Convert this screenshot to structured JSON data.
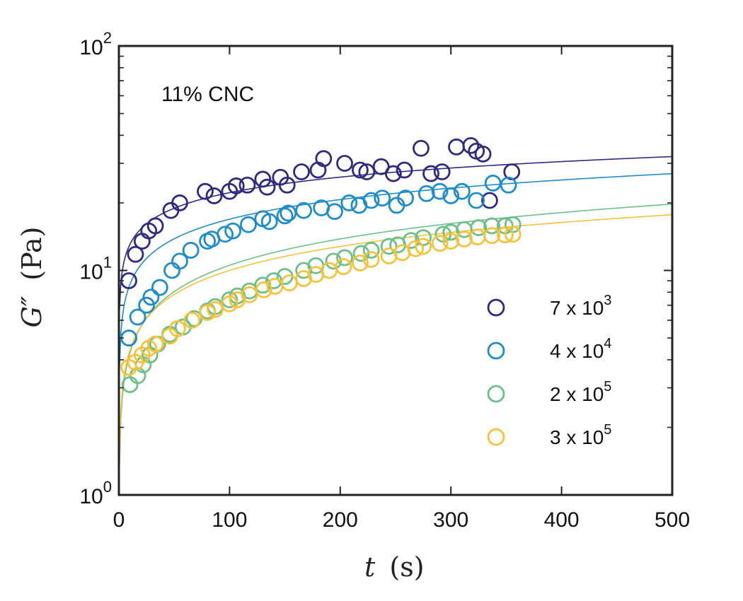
{
  "chart_data": {
    "type": "scatter",
    "annotation": "11% CNC",
    "x_axis": {
      "variable": "t",
      "unit": "(s)",
      "lim": [
        0,
        500
      ],
      "ticks": [
        0,
        100,
        200,
        300,
        400,
        500
      ],
      "tick_labels": [
        "0",
        "100",
        "200",
        "300",
        "400",
        "500"
      ]
    },
    "y_axis": {
      "scale": "log",
      "variable": "G″",
      "unit": "(Pa)",
      "lim": [
        1,
        100
      ],
      "ticks": [
        1,
        10,
        100
      ],
      "tick_labels": [
        {
          "base": "10",
          "exp": "0"
        },
        {
          "base": "10",
          "exp": "1"
        },
        {
          "base": "10",
          "exp": "2"
        }
      ]
    },
    "legend_position": "right",
    "series": [
      {
        "name": "7 x 10^3",
        "label_base": "7 x 10",
        "label_exp": "3",
        "color": "#2e2a7e",
        "fit": {
          "a": 7.7,
          "b": 0.23
        },
        "points": [
          [
            9,
            9.0
          ],
          [
            15,
            11.8
          ],
          [
            21,
            13.5
          ],
          [
            27,
            15.0
          ],
          [
            33,
            15.8
          ],
          [
            47,
            18.5
          ],
          [
            55,
            20.0
          ],
          [
            78,
            22.5
          ],
          [
            86,
            21.5
          ],
          [
            100,
            22.5
          ],
          [
            106,
            23.8
          ],
          [
            116,
            24.0
          ],
          [
            130,
            25.5
          ],
          [
            134,
            23.5
          ],
          [
            146,
            26.0
          ],
          [
            152,
            24.0
          ],
          [
            165,
            27.5
          ],
          [
            180,
            28.0
          ],
          [
            185,
            31.5
          ],
          [
            204,
            30.0
          ],
          [
            218,
            28.0
          ],
          [
            224,
            27.5
          ],
          [
            237,
            29.0
          ],
          [
            248,
            27.0
          ],
          [
            258,
            28.0
          ],
          [
            273,
            35.0
          ],
          [
            282,
            27.0
          ],
          [
            292,
            27.5
          ],
          [
            305,
            35.5
          ],
          [
            318,
            36.0
          ],
          [
            323,
            34.0
          ],
          [
            329,
            33.0
          ],
          [
            335,
            20.5
          ],
          [
            355,
            27.5
          ]
        ]
      },
      {
        "name": "4 x 10^4",
        "label_base": "4 x 10",
        "label_exp": "4",
        "color": "#1f8cc9",
        "fit": {
          "a": 4.45,
          "b": 0.29
        },
        "points": [
          [
            9,
            5.0
          ],
          [
            17,
            6.2
          ],
          [
            25,
            7.0
          ],
          [
            29,
            7.6
          ],
          [
            37,
            8.4
          ],
          [
            48,
            10.0
          ],
          [
            55,
            11.0
          ],
          [
            65,
            12.3
          ],
          [
            80,
            13.5
          ],
          [
            84,
            13.8
          ],
          [
            96,
            14.5
          ],
          [
            103,
            15.0
          ],
          [
            117,
            16.0
          ],
          [
            130,
            17.0
          ],
          [
            136,
            16.5
          ],
          [
            150,
            17.5
          ],
          [
            153,
            18.0
          ],
          [
            167,
            18.5
          ],
          [
            183,
            19.0
          ],
          [
            195,
            18.3
          ],
          [
            208,
            20.0
          ],
          [
            217,
            19.5
          ],
          [
            228,
            20.5
          ],
          [
            238,
            21.0
          ],
          [
            251,
            19.5
          ],
          [
            259,
            21.0
          ],
          [
            278,
            22.0
          ],
          [
            290,
            22.5
          ],
          [
            300,
            21.5
          ],
          [
            310,
            22.5
          ],
          [
            323,
            20.5
          ],
          [
            338,
            24.5
          ],
          [
            352,
            24.0
          ]
        ]
      },
      {
        "name": "2 x 10^5",
        "label_base": "2 x 10",
        "label_exp": "5",
        "color": "#6dbf8a",
        "fit": {
          "a": 1.75,
          "b": 0.39
        },
        "points": [
          [
            10,
            3.1
          ],
          [
            17,
            3.4
          ],
          [
            22,
            3.8
          ],
          [
            28,
            4.2
          ],
          [
            35,
            4.7
          ],
          [
            46,
            5.2
          ],
          [
            58,
            5.6
          ],
          [
            68,
            6.1
          ],
          [
            80,
            6.6
          ],
          [
            87,
            6.9
          ],
          [
            100,
            7.4
          ],
          [
            107,
            7.7
          ],
          [
            118,
            8.1
          ],
          [
            130,
            8.6
          ],
          [
            140,
            9.0
          ],
          [
            150,
            9.4
          ],
          [
            167,
            10.0
          ],
          [
            178,
            10.5
          ],
          [
            194,
            11.0
          ],
          [
            204,
            11.4
          ],
          [
            219,
            11.9
          ],
          [
            228,
            12.3
          ],
          [
            244,
            12.8
          ],
          [
            252,
            13.0
          ],
          [
            264,
            13.6
          ],
          [
            275,
            14.0
          ],
          [
            293,
            14.5
          ],
          [
            300,
            14.8
          ],
          [
            312,
            15.2
          ],
          [
            325,
            15.5
          ],
          [
            337,
            15.8
          ],
          [
            349,
            15.8
          ],
          [
            356,
            16.0
          ]
        ]
      },
      {
        "name": "3 x 10^5",
        "label_base": "3 x 10",
        "label_exp": "5",
        "color": "#f4c23b",
        "fit": {
          "a": 1.95,
          "b": 0.355
        },
        "points": [
          [
            9,
            3.7
          ],
          [
            15,
            3.9
          ],
          [
            21,
            4.2
          ],
          [
            27,
            4.5
          ],
          [
            33,
            4.7
          ],
          [
            46,
            5.1
          ],
          [
            53,
            5.5
          ],
          [
            66,
            6.0
          ],
          [
            80,
            6.5
          ],
          [
            87,
            6.7
          ],
          [
            100,
            7.1
          ],
          [
            107,
            7.4
          ],
          [
            118,
            7.8
          ],
          [
            131,
            8.2
          ],
          [
            141,
            8.5
          ],
          [
            154,
            8.8
          ],
          [
            167,
            9.2
          ],
          [
            178,
            9.6
          ],
          [
            190,
            10.0
          ],
          [
            203,
            10.4
          ],
          [
            218,
            10.8
          ],
          [
            228,
            11.2
          ],
          [
            244,
            11.6
          ],
          [
            256,
            12.0
          ],
          [
            268,
            12.5
          ],
          [
            275,
            12.8
          ],
          [
            290,
            13.2
          ],
          [
            300,
            13.5
          ],
          [
            312,
            13.8
          ],
          [
            324,
            14.1
          ],
          [
            337,
            14.3
          ],
          [
            349,
            14.4
          ],
          [
            356,
            14.5
          ]
        ]
      }
    ]
  }
}
